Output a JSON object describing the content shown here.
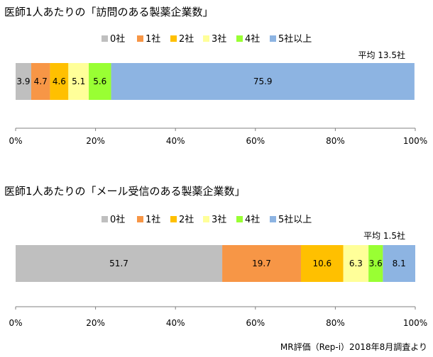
{
  "chart_data": [
    {
      "type": "bar",
      "orientation": "horizontal",
      "stacked": true,
      "title": "医師1人あたりの「訪問のある製薬企業数」",
      "annotation": "平均 13.5社",
      "categories": [
        ""
      ],
      "series": [
        {
          "name": "0社",
          "values": [
            3.9
          ],
          "color": "#bfbfbf"
        },
        {
          "name": "1社",
          "values": [
            4.7
          ],
          "color": "#f79646"
        },
        {
          "name": "2社",
          "values": [
            4.6
          ],
          "color": "#ffc000"
        },
        {
          "name": "3社",
          "values": [
            5.1
          ],
          "color": "#ffff99"
        },
        {
          "name": "4社",
          "values": [
            5.6
          ],
          "color": "#99ff33"
        },
        {
          "name": "5社以上",
          "values": [
            75.9
          ],
          "color": "#8db4e2"
        }
      ],
      "xlim": [
        0,
        100
      ],
      "xticks": [
        "0%",
        "20%",
        "40%",
        "60%",
        "80%",
        "100%"
      ],
      "legend": "top",
      "grid": false
    },
    {
      "type": "bar",
      "orientation": "horizontal",
      "stacked": true,
      "title": "医師1人あたりの「メール受信のある製薬企業数」",
      "annotation": "平均 1.5社",
      "categories": [
        ""
      ],
      "series": [
        {
          "name": "0社",
          "values": [
            51.7
          ],
          "color": "#bfbfbf"
        },
        {
          "name": "1社",
          "values": [
            19.7
          ],
          "color": "#f79646"
        },
        {
          "name": "2社",
          "values": [
            10.6
          ],
          "color": "#ffc000"
        },
        {
          "name": "3社",
          "values": [
            6.3
          ],
          "color": "#ffff99"
        },
        {
          "name": "4社",
          "values": [
            3.6
          ],
          "color": "#99ff33"
        },
        {
          "name": "5社以上",
          "values": [
            8.1
          ],
          "color": "#8db4e2"
        }
      ],
      "xlim": [
        0,
        100
      ],
      "xticks": [
        "0%",
        "20%",
        "40%",
        "60%",
        "80%",
        "100%"
      ],
      "legend": "top",
      "grid": false
    }
  ],
  "source": "MR評価（Rep-i）2018年8月調査より"
}
